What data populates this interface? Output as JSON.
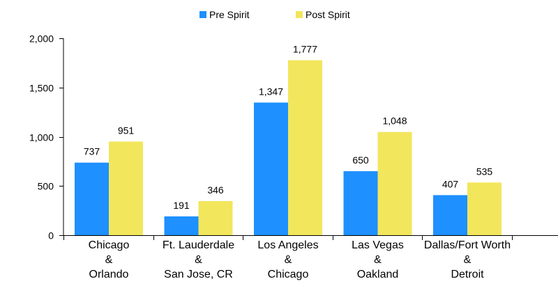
{
  "colors": {
    "pre": "#1E90FF",
    "post": "#F2E65C",
    "axis": "#000000"
  },
  "chart_data": {
    "type": "bar",
    "title": "",
    "xlabel": "",
    "ylabel": "",
    "ylim": [
      0,
      2000
    ],
    "yticks": [
      0,
      500,
      1000,
      1500,
      2000
    ],
    "ytick_labels": [
      "0",
      "500",
      "1,000",
      "1,500",
      "2,000"
    ],
    "grid": false,
    "legend_position": "top-center",
    "categories": [
      [
        "Chicago",
        "&",
        "Orlando"
      ],
      [
        "Ft. Lauderdale",
        "&",
        "San Jose, CR"
      ],
      [
        "Los Angeles",
        "&",
        "Chicago"
      ],
      [
        "Las Vegas",
        "&",
        "Oakland"
      ],
      [
        "Dallas/Fort Worth",
        "&",
        "Detroit"
      ]
    ],
    "series": [
      {
        "name": "Pre Spirit",
        "values": [
          737,
          191,
          1347,
          650,
          407
        ],
        "labels": [
          "737",
          "191",
          "1,347",
          "650",
          "407"
        ]
      },
      {
        "name": "Post Spirit",
        "values": [
          951,
          346,
          1777,
          1048,
          535
        ],
        "labels": [
          "951",
          "346",
          "1,777",
          "1,048",
          "535"
        ]
      }
    ]
  }
}
